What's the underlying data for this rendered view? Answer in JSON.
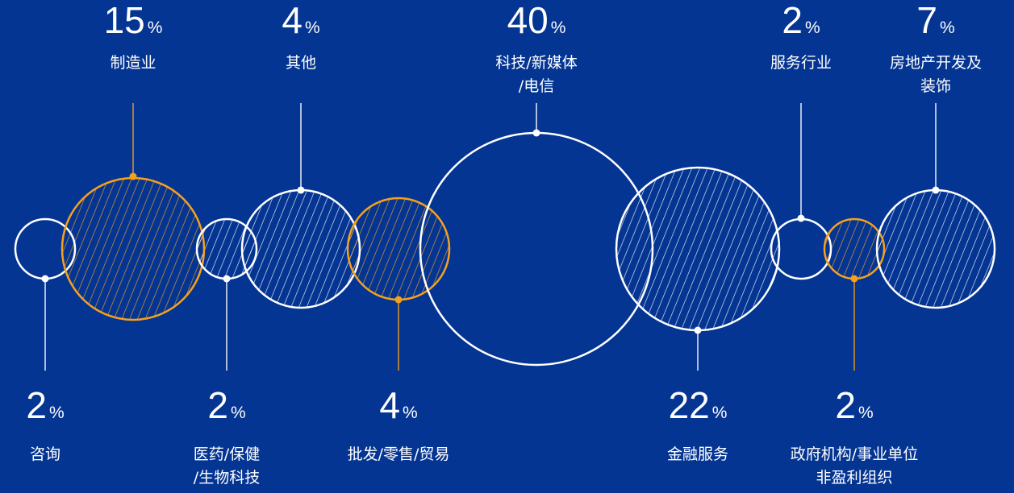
{
  "chart_data": {
    "type": "bubble",
    "unit_symbol": "%",
    "colors": {
      "background": "#043592",
      "accent": "#F5A11D",
      "neutral": "#FFFFFF"
    },
    "items": [
      {
        "label": "咨询",
        "value": 2,
        "color": "white",
        "fill": "none",
        "label_side": "bottom"
      },
      {
        "label": "制造业",
        "value": 15,
        "color": "orange",
        "fill": "hatch",
        "label_side": "top"
      },
      {
        "label": "医药/保健\n/生物科技",
        "value": 2,
        "color": "white",
        "fill": "hatch",
        "label_side": "bottom"
      },
      {
        "label": "其他",
        "value": 4,
        "color": "white",
        "fill": "hatch",
        "label_side": "top"
      },
      {
        "label": "批发/零售/贸易",
        "value": 4,
        "color": "orange",
        "fill": "hatch",
        "label_side": "bottom"
      },
      {
        "label": "科技/新媒体\n/电信",
        "value": 40,
        "color": "white",
        "fill": "none",
        "label_side": "top"
      },
      {
        "label": "金融服务",
        "value": 22,
        "color": "white",
        "fill": "hatch",
        "label_side": "bottom"
      },
      {
        "label": "服务行业",
        "value": 2,
        "color": "white",
        "fill": "none",
        "label_side": "top"
      },
      {
        "label": "政府机构/事业单位\n非盈利组织",
        "value": 2,
        "color": "orange",
        "fill": "hatch",
        "label_side": "bottom"
      },
      {
        "label": "房地产开发及\n装饰",
        "value": 7,
        "color": "white",
        "fill": "hatch",
        "label_side": "top"
      }
    ]
  }
}
